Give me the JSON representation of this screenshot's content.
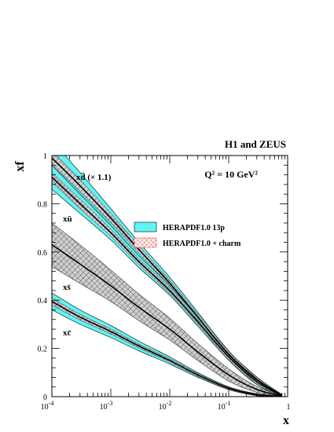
{
  "chart_data": {
    "type": "line",
    "experiment": "H1 and ZEUS",
    "scale_label": "Q² = 10 GeV²",
    "xlabel": "x",
    "ylabel": "xf",
    "x_scale": "log",
    "xlim": [
      0.0001,
      1
    ],
    "ylim": [
      0,
      1
    ],
    "grid": false,
    "x_ticks": [
      {
        "value": 0.0001,
        "base": "10",
        "exp": "-4"
      },
      {
        "value": 0.001,
        "base": "10",
        "exp": "-3"
      },
      {
        "value": 0.01,
        "base": "10",
        "exp": "-2"
      },
      {
        "value": 0.1,
        "base": "10",
        "exp": "-1"
      },
      {
        "value": 1,
        "base": "1",
        "exp": ""
      }
    ],
    "y_ticks": [
      "0",
      "0.2",
      "0.4",
      "0.6",
      "0.8",
      "1"
    ],
    "legend": {
      "placement": "center",
      "entries": [
        {
          "label": "HERAPDF1.0 13p",
          "style": "solid",
          "color": "#5ff5f5"
        },
        {
          "label": "HERAPDF1.0 + charm",
          "style": "hatched",
          "color": "#e05050"
        }
      ]
    },
    "curve_labels": [
      {
        "text": "xd̄ (× 1.1)",
        "curve": "xdbar"
      },
      {
        "text": "xū",
        "curve": "xubar"
      },
      {
        "text": "xs̄",
        "curve": "xsbar"
      },
      {
        "text": "xc̄",
        "curve": "xcbar"
      }
    ],
    "x": [
      0.0001,
      0.0003,
      0.001,
      0.003,
      0.01,
      0.03,
      0.1,
      0.3,
      0.8
    ],
    "series": [
      {
        "id": "xdbar",
        "central": [
          0.99,
          0.875,
          0.74,
          0.61,
          0.47,
          0.33,
          0.175,
          0.07,
          0.005
        ],
        "band_outer": [
          0.07,
          0.055,
          0.04,
          0.03,
          0.025,
          0.02,
          0.015,
          0.012,
          0.004
        ],
        "band_inner": [
          0.03,
          0.025,
          0.02,
          0.015,
          0.012,
          0.012,
          0.012,
          0.01,
          0.004
        ]
      },
      {
        "id": "xubar",
        "central": [
          0.91,
          0.8,
          0.68,
          0.56,
          0.44,
          0.31,
          0.165,
          0.062,
          0.004
        ],
        "band_outer": [
          0.05,
          0.04,
          0.03,
          0.025,
          0.02,
          0.018,
          0.014,
          0.012,
          0.004
        ],
        "band_inner": [
          0.02,
          0.02,
          0.015,
          0.012,
          0.012,
          0.01,
          0.01,
          0.008,
          0.003
        ]
      },
      {
        "id": "xsbar",
        "central": [
          0.63,
          0.55,
          0.46,
          0.37,
          0.28,
          0.185,
          0.09,
          0.03,
          0.002
        ],
        "band_outer": [
          0.09,
          0.08,
          0.065,
          0.055,
          0.045,
          0.035,
          0.025,
          0.012,
          0.002
        ],
        "band_inner": [
          0.09,
          0.08,
          0.065,
          0.055,
          0.045,
          0.035,
          0.025,
          0.012,
          0.002
        ]
      },
      {
        "id": "xcbar",
        "central": [
          0.395,
          0.33,
          0.27,
          0.21,
          0.15,
          0.09,
          0.035,
          0.008,
          0.0005
        ],
        "band_outer": [
          0.035,
          0.03,
          0.025,
          0.02,
          0.015,
          0.01,
          0.006,
          0.004,
          0.0005
        ],
        "band_inner": [
          0.015,
          0.012,
          0.01,
          0.008,
          0.007,
          0.006,
          0.004,
          0.002,
          0.0003
        ]
      }
    ]
  }
}
